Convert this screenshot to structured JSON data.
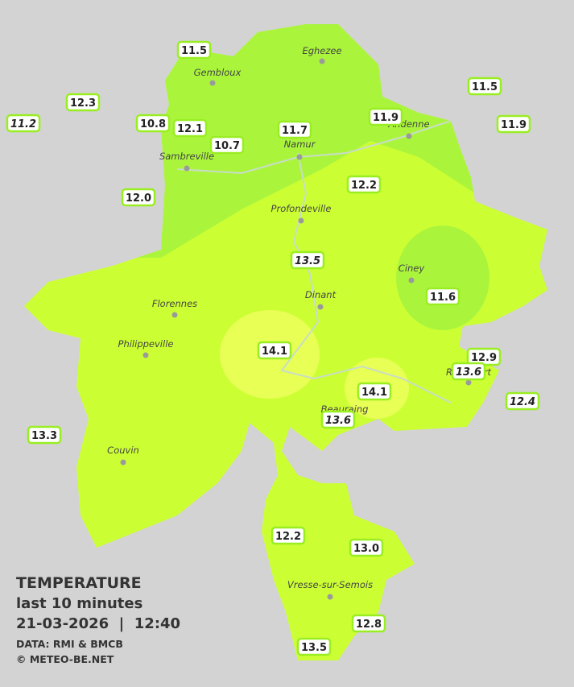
{
  "legend": {
    "title": "TEMPERATURE",
    "subtitle": "last 10 minutes",
    "datetime": "21-03-2026  |  12:40",
    "source": "DATA: RMI & BMCB",
    "credit": "© METEO-BE.NET"
  },
  "cities": [
    "Eghezee",
    "Gembloux",
    "Andenne",
    "Namur",
    "Sambreville",
    "Profondeville",
    "Ciney",
    "Dinant",
    "Florennes",
    "Philippeville",
    "Rochefort",
    "Beauraing",
    "Couvin",
    "Vresse-sur-Semois"
  ],
  "stations": [
    {
      "value": "11.5",
      "italic": false
    },
    {
      "value": "12.3",
      "italic": false
    },
    {
      "value": "11.2",
      "italic": true
    },
    {
      "value": "10.8",
      "italic": false
    },
    {
      "value": "12.1",
      "italic": false
    },
    {
      "value": "10.7",
      "italic": false
    },
    {
      "value": "11.7",
      "italic": false
    },
    {
      "value": "11.9",
      "italic": false
    },
    {
      "value": "11.5",
      "italic": false
    },
    {
      "value": "11.9",
      "italic": false
    },
    {
      "value": "12.0",
      "italic": false
    },
    {
      "value": "12.2",
      "italic": false
    },
    {
      "value": "13.5",
      "italic": true
    },
    {
      "value": "11.6",
      "italic": false
    },
    {
      "value": "14.1",
      "italic": false
    },
    {
      "value": "12.9",
      "italic": false
    },
    {
      "value": "13.6",
      "italic": true
    },
    {
      "value": "12.4",
      "italic": true
    },
    {
      "value": "14.1",
      "italic": false
    },
    {
      "value": "13.6",
      "italic": true
    },
    {
      "value": "13.3",
      "italic": false
    },
    {
      "value": "12.2",
      "italic": false
    },
    {
      "value": "13.0",
      "italic": false
    },
    {
      "value": "12.8",
      "italic": false
    },
    {
      "value": "13.5",
      "italic": false
    }
  ]
}
